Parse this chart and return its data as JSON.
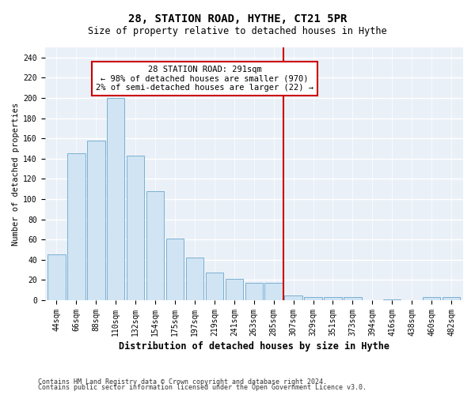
{
  "title": "28, STATION ROAD, HYTHE, CT21 5PR",
  "subtitle": "Size of property relative to detached houses in Hythe",
  "xlabel": "Distribution of detached houses by size in Hythe",
  "ylabel": "Number of detached properties",
  "bar_color": "#d0e4f3",
  "bar_edge_color": "#7ab0d4",
  "background_color": "#eaf0f7",
  "grid_color": "#ffffff",
  "categories": [
    "44sqm",
    "66sqm",
    "88sqm",
    "110sqm",
    "132sqm",
    "154sqm",
    "175sqm",
    "197sqm",
    "219sqm",
    "241sqm",
    "263sqm",
    "285sqm",
    "307sqm",
    "329sqm",
    "351sqm",
    "373sqm",
    "394sqm",
    "416sqm",
    "438sqm",
    "460sqm",
    "482sqm"
  ],
  "values": [
    45,
    145,
    158,
    200,
    143,
    108,
    61,
    42,
    27,
    21,
    17,
    17,
    5,
    3,
    3,
    3,
    0,
    1,
    0,
    3,
    3
  ],
  "vline_x": 11.5,
  "vline_color": "#cc0000",
  "annotation_text": "28 STATION ROAD: 291sqm\n← 98% of detached houses are smaller (970)\n2% of semi-detached houses are larger (22) →",
  "annotation_box_color": "#cc0000",
  "ylim": [
    0,
    250
  ],
  "yticks": [
    0,
    20,
    40,
    60,
    80,
    100,
    120,
    140,
    160,
    180,
    200,
    220,
    240
  ],
  "footnote1": "Contains HM Land Registry data © Crown copyright and database right 2024.",
  "footnote2": "Contains public sector information licensed under the Open Government Licence v3.0.",
  "fig_width": 6.0,
  "fig_height": 5.0,
  "title_fontsize": 10,
  "subtitle_fontsize": 8.5,
  "ylabel_fontsize": 7.5,
  "xlabel_fontsize": 8.5,
  "tick_fontsize": 7,
  "annotation_fontsize": 7.5,
  "footnote_fontsize": 6
}
